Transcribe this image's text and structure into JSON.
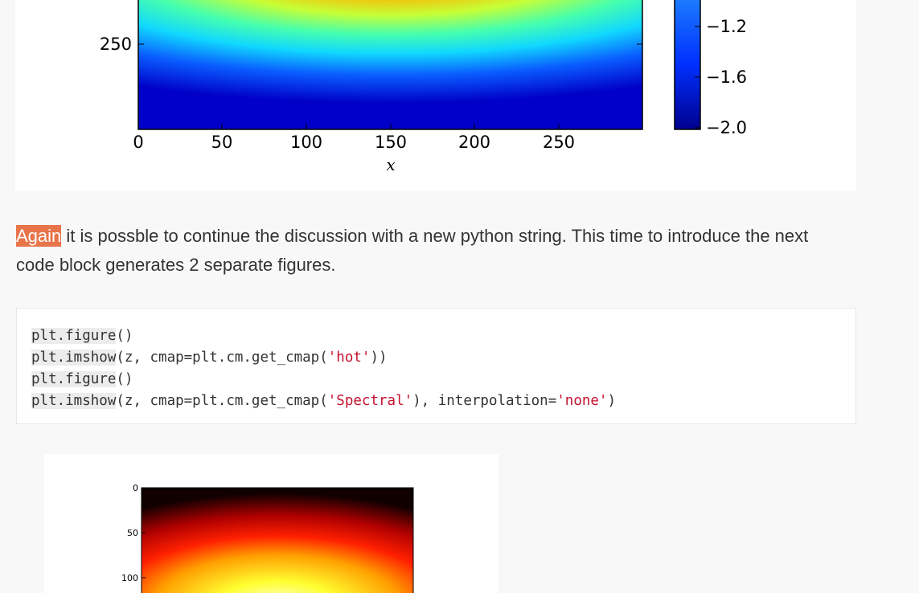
{
  "figure1": {
    "colormap": "jet",
    "y_ticks": [
      "250"
    ],
    "x_ticks": [
      "0",
      "50",
      "100",
      "150",
      "200",
      "250"
    ],
    "x_label": "x",
    "colorbar_ticks": [
      "−1.2",
      "−1.6",
      "−2.0"
    ]
  },
  "paragraph": {
    "highlight": "Again",
    "text": " it is possble to continue the discussion with a new python string. This time to introduce the next code block generates 2 separate figures."
  },
  "code_block": {
    "lines": [
      {
        "fn": "plt.figure",
        "rest": "()"
      },
      {
        "fn": "plt.imshow",
        "pre": "(z, cmap=plt.cm.get_cmap(",
        "str": "'hot'",
        "post": "))"
      },
      {
        "fn": "plt.figure",
        "rest": "()"
      },
      {
        "fn": "plt.imshow",
        "pre": "(z, cmap=plt.cm.get_cmap(",
        "str": "'Spectral'",
        "post": "), interpolation=",
        "str2": "'none'",
        "post2": ")"
      }
    ]
  },
  "figure2": {
    "colormap": "hot",
    "y_ticks": [
      "0",
      "50",
      "100"
    ]
  },
  "colors": {
    "page_background": "#f8f8f8",
    "highlight": "#e8744a",
    "code_string": "#c4122f",
    "text": "#333333"
  }
}
